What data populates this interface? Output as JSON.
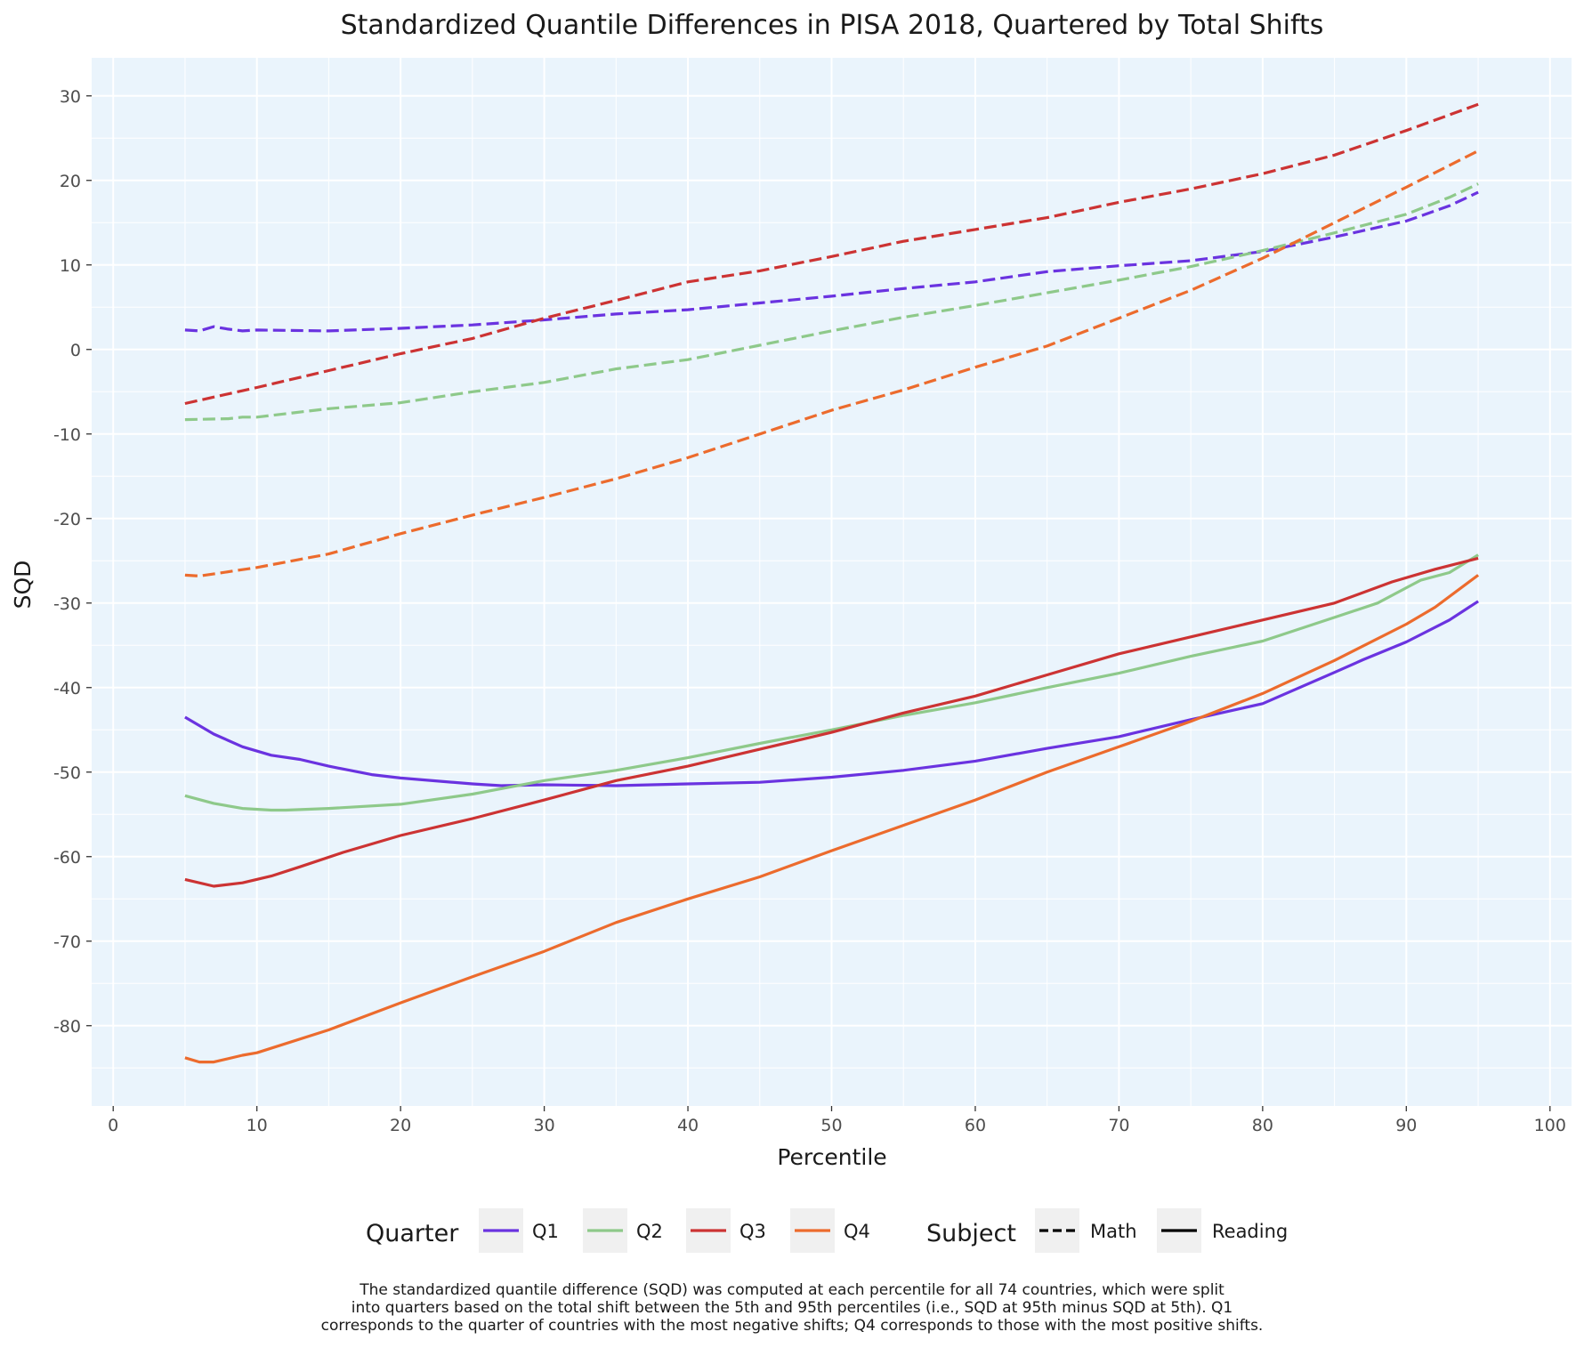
{
  "chart_data": {
    "type": "line",
    "title": "Standardized Quantile Differences in PISA 2018, Quartered by Total Shifts",
    "xlabel": "Percentile",
    "ylabel": "SQD",
    "xlim": [
      -1.5,
      101.5
    ],
    "ylim": [
      -89.5,
      34.5
    ],
    "x_ticks": [
      0,
      10,
      20,
      30,
      40,
      50,
      60,
      70,
      80,
      90,
      100
    ],
    "x_tick_labels": [
      "0",
      "10",
      "20",
      "30",
      "40",
      "50",
      "60",
      "70",
      "80",
      "90",
      "100"
    ],
    "y_ticks": [
      30,
      20,
      10,
      0,
      -10,
      -20,
      -30,
      -40,
      -50,
      -60,
      -70,
      -80
    ],
    "y_tick_labels": [
      "30",
      "20",
      "10",
      "0",
      "-10",
      "-20",
      "-30",
      "-40",
      "-50",
      "-60",
      "-70",
      "-80"
    ],
    "grid": true,
    "legend_position": "bottom",
    "legend": {
      "quarter_title": "Quarter",
      "quarters": [
        {
          "label": "Q1",
          "color": "#6a33e0"
        },
        {
          "label": "Q2",
          "color": "#8ec98a"
        },
        {
          "label": "Q3",
          "color": "#cc3333"
        },
        {
          "label": "Q4",
          "color": "#ec6b2d"
        }
      ],
      "subject_title": "Subject",
      "subjects": [
        {
          "label": "Math",
          "dash": "dashed"
        },
        {
          "label": "Reading",
          "dash": "solid"
        }
      ]
    },
    "series": [
      {
        "quarter": "Q1",
        "subject": "Math",
        "color": "#6a33e0",
        "x": [
          5,
          6,
          7,
          8,
          9,
          10,
          15,
          20,
          25,
          30,
          35,
          40,
          45,
          50,
          55,
          60,
          65,
          70,
          75,
          80,
          85,
          90,
          91,
          93,
          95
        ],
        "y": [
          2.3,
          2.2,
          2.7,
          2.4,
          2.2,
          2.3,
          2.2,
          2.5,
          2.9,
          3.5,
          4.2,
          4.7,
          5.5,
          6.3,
          7.2,
          8.0,
          9.2,
          9.9,
          10.5,
          11.6,
          13.3,
          15.2,
          15.8,
          17.0,
          18.6
        ]
      },
      {
        "quarter": "Q2",
        "subject": "Math",
        "color": "#8ec98a",
        "x": [
          5,
          8,
          9,
          10,
          15,
          20,
          25,
          30,
          35,
          40,
          45,
          50,
          55,
          60,
          65,
          70,
          75,
          80,
          85,
          90,
          93,
          95
        ],
        "y": [
          -8.3,
          -8.2,
          -8.0,
          -8.0,
          -7.0,
          -6.3,
          -5.0,
          -3.9,
          -2.3,
          -1.2,
          0.5,
          2.2,
          3.8,
          5.2,
          6.7,
          8.2,
          9.8,
          11.7,
          13.8,
          16.0,
          18.0,
          19.6
        ]
      },
      {
        "quarter": "Q3",
        "subject": "Math",
        "color": "#cc3333",
        "x": [
          5,
          10,
          15,
          20,
          25,
          30,
          35,
          40,
          45,
          50,
          55,
          60,
          65,
          70,
          75,
          80,
          85,
          90,
          95
        ],
        "y": [
          -6.4,
          -4.5,
          -2.5,
          -0.5,
          1.3,
          3.7,
          5.8,
          8.0,
          9.3,
          11.0,
          12.8,
          14.2,
          15.6,
          17.4,
          19.0,
          20.8,
          23.0,
          25.9,
          29.0
        ]
      },
      {
        "quarter": "Q4",
        "subject": "Math",
        "color": "#ec6b2d",
        "x": [
          5,
          6,
          10,
          15,
          20,
          25,
          30,
          35,
          40,
          45,
          50,
          55,
          60,
          65,
          70,
          75,
          80,
          85,
          90,
          95
        ],
        "y": [
          -26.7,
          -26.8,
          -25.8,
          -24.2,
          -21.8,
          -19.6,
          -17.5,
          -15.3,
          -12.8,
          -10.0,
          -7.2,
          -4.8,
          -2.1,
          0.4,
          3.7,
          7.0,
          10.8,
          15.0,
          19.2,
          23.5
        ]
      },
      {
        "quarter": "Q1",
        "subject": "Reading",
        "color": "#6a33e0",
        "x": [
          5,
          7,
          9,
          11,
          13,
          15,
          18,
          20,
          25,
          27,
          30,
          35,
          40,
          45,
          50,
          55,
          60,
          65,
          70,
          75,
          80,
          85,
          87,
          90,
          93,
          95
        ],
        "y": [
          -43.5,
          -45.5,
          -47.0,
          -48.0,
          -48.5,
          -49.3,
          -50.3,
          -50.7,
          -51.4,
          -51.6,
          -51.5,
          -51.6,
          -51.4,
          -51.2,
          -50.6,
          -49.8,
          -48.7,
          -47.2,
          -45.8,
          -43.8,
          -41.9,
          -38.2,
          -36.7,
          -34.6,
          -32.0,
          -29.8
        ]
      },
      {
        "quarter": "Q2",
        "subject": "Reading",
        "color": "#8ec98a",
        "x": [
          5,
          7,
          9,
          11,
          12,
          15,
          20,
          25,
          30,
          35,
          40,
          45,
          50,
          55,
          60,
          65,
          70,
          75,
          80,
          85,
          88,
          90,
          91,
          93,
          95
        ],
        "y": [
          -52.8,
          -53.7,
          -54.3,
          -54.5,
          -54.5,
          -54.3,
          -53.8,
          -52.6,
          -51.0,
          -49.8,
          -48.3,
          -46.6,
          -45.0,
          -43.3,
          -41.8,
          -40.0,
          -38.3,
          -36.3,
          -34.5,
          -31.7,
          -30.0,
          -28.2,
          -27.3,
          -26.4,
          -24.3
        ]
      },
      {
        "quarter": "Q3",
        "subject": "Reading",
        "color": "#cc3333",
        "x": [
          5,
          7,
          9,
          11,
          13,
          16,
          20,
          25,
          30,
          35,
          40,
          45,
          50,
          55,
          60,
          65,
          70,
          75,
          80,
          85,
          89,
          92,
          95
        ],
        "y": [
          -62.7,
          -63.5,
          -63.1,
          -62.3,
          -61.2,
          -59.5,
          -57.5,
          -55.5,
          -53.3,
          -51.0,
          -49.3,
          -47.3,
          -45.3,
          -43.0,
          -41.0,
          -38.5,
          -36.0,
          -34.0,
          -32.0,
          -30.0,
          -27.5,
          -26.0,
          -24.7
        ]
      },
      {
        "quarter": "Q4",
        "subject": "Reading",
        "color": "#ec6b2d",
        "x": [
          5,
          6,
          7,
          9,
          10,
          15,
          20,
          25,
          30,
          35,
          40,
          45,
          50,
          55,
          60,
          65,
          70,
          75,
          80,
          85,
          90,
          92,
          95
        ],
        "y": [
          -83.8,
          -84.3,
          -84.3,
          -83.5,
          -83.2,
          -80.5,
          -77.3,
          -74.2,
          -71.2,
          -67.8,
          -65.0,
          -62.4,
          -59.3,
          -56.3,
          -53.3,
          -50.0,
          -47.0,
          -44.0,
          -40.7,
          -36.8,
          -32.5,
          -30.5,
          -26.7
        ]
      }
    ],
    "caption": [
      "The standardized quantile difference (SQD) was computed at each percentile for all 74 countries, which were split",
      "into quarters based on the total shift between the 5th and 95th percentiles (i.e., SQD at 95th minus SQD at 5th). Q1",
      "corresponds to the quarter of countries with the most negative shifts; Q4 corresponds to those with the most positive shifts."
    ]
  }
}
